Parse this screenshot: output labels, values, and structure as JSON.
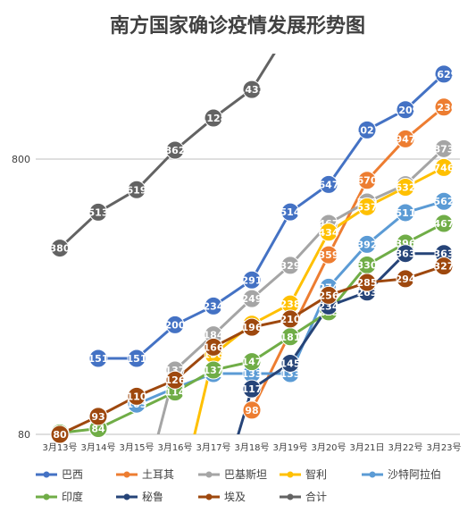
{
  "chart_data": {
    "type": "line",
    "title": "南方国家确诊疫情发展形势图",
    "xlabel": "",
    "ylabel": "",
    "x": [
      "3月13号",
      "3月14号",
      "3月15号",
      "3月16号",
      "3月17号",
      "3月18号",
      "3月19号",
      "3月20号",
      "3月21日",
      "3月22号",
      "3月23号"
    ],
    "y_scale": "log",
    "ylim": [
      80,
      1750
    ],
    "yticks": [
      {
        "value": 80,
        "label": "80"
      },
      {
        "value": 800,
        "label": "800"
      }
    ],
    "grid": "horizontal",
    "legend_position": "bottom",
    "series": [
      {
        "name": "巴西",
        "color": "#4472c4",
        "values": [
          null,
          151,
          151,
          200,
          234,
          291,
          514,
          647,
          1021,
          1209,
          1629
        ]
      },
      {
        "name": "土耳其",
        "color": "#ed7d31",
        "values": [
          null,
          null,
          null,
          null,
          null,
          98,
          null,
          359,
          670,
          947,
          1236
        ]
      },
      {
        "name": "巴基斯坦",
        "color": "#a5a5a5",
        "values": [
          null,
          null,
          null,
          137,
          184,
          249,
          329,
          467,
          559,
          646,
          873
        ]
      },
      {
        "name": "智利",
        "color": "#ffc000",
        "values": [
          null,
          null,
          null,
          null,
          156,
          201,
          238,
          434,
          537,
          632,
          746
        ]
      },
      {
        "name": "沙特阿拉伯",
        "color": "#5b9bd5",
        "values": [
          null,
          null,
          103,
          118,
          133,
          133,
          133,
          274,
          392,
          511,
          562
        ]
      },
      {
        "name": "印度",
        "color": "#70ad47",
        "values": [
          81,
          84,
          null,
          114,
          137,
          147,
          181,
          223,
          330,
          396,
          467
        ]
      },
      {
        "name": "秘鲁",
        "color": "#264478",
        "values": [
          null,
          null,
          null,
          null,
          null,
          117,
          145,
          234,
          263,
          363,
          363
        ]
      },
      {
        "name": "埃及",
        "color": "#9e480e",
        "values": [
          80,
          93,
          110,
          126,
          166,
          196,
          210,
          256,
          285,
          294,
          327
        ]
      },
      {
        "name": "合计",
        "color": "#636363",
        "values": [
          380,
          513,
          619,
          862,
          1128,
          1432,
          null,
          null,
          null,
          null,
          null
        ]
      }
    ]
  }
}
